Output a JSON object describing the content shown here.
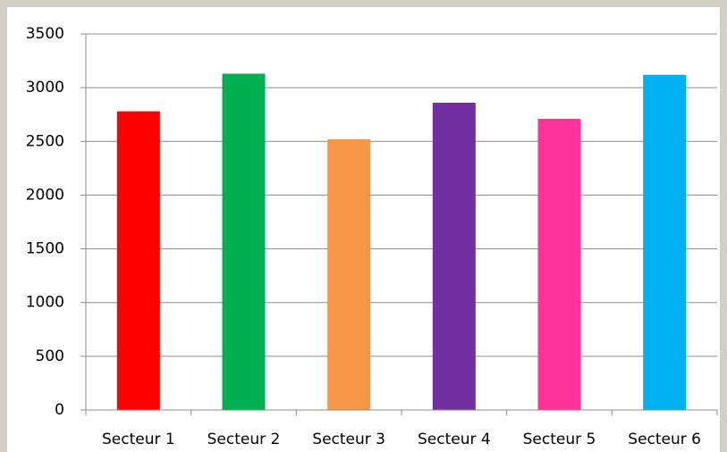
{
  "chart_data": {
    "type": "bar",
    "categories": [
      "Secteur 1",
      "Secteur 2",
      "Secteur 3",
      "Secteur 4",
      "Secteur 5",
      "Secteur 6"
    ],
    "values": [
      2780,
      3130,
      2520,
      2860,
      2710,
      3120
    ],
    "colors": [
      "#ff0000",
      "#00b050",
      "#f79646",
      "#7030a0",
      "#ff3399",
      "#00b0f0"
    ],
    "ylim": [
      0,
      3500
    ],
    "yticks": [
      0,
      500,
      1000,
      1500,
      2000,
      2500,
      3000,
      3500
    ],
    "grid": true
  }
}
